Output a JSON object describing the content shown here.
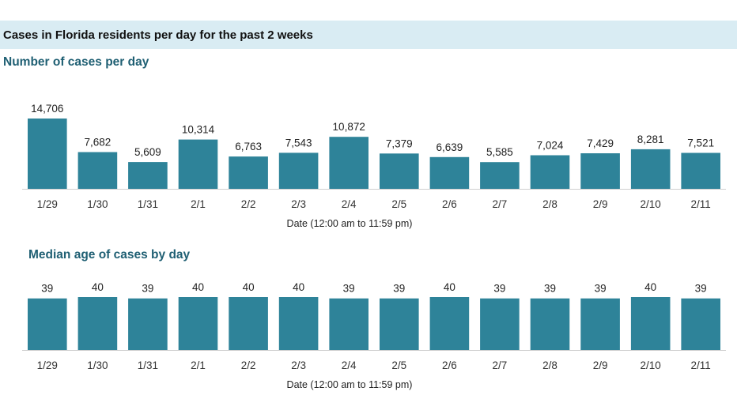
{
  "banner": {
    "title": "Cases in Florida residents per day for the past 2 weeks"
  },
  "colors": {
    "bar": "#2e8399",
    "banner_bg": "#d9ecf3",
    "chart_title": "#1f5f73"
  },
  "chart_data": [
    {
      "type": "bar",
      "title": "Number of cases per day",
      "xlabel": "Date (12:00 am to 11:59 pm)",
      "ylabel": "",
      "categories": [
        "1/29",
        "1/30",
        "1/31",
        "2/1",
        "2/2",
        "2/3",
        "2/4",
        "2/5",
        "2/6",
        "2/7",
        "2/8",
        "2/9",
        "2/10",
        "2/11"
      ],
      "values": [
        14706,
        7682,
        5609,
        10314,
        6763,
        7543,
        10872,
        7379,
        6639,
        5585,
        7024,
        7429,
        8281,
        7521
      ],
      "labels": [
        "14,706",
        "7,682",
        "5,609",
        "10,314",
        "6,763",
        "7,543",
        "10,872",
        "7,379",
        "6,639",
        "5,585",
        "7,024",
        "7,429",
        "8,281",
        "7,521"
      ],
      "ylim": [
        0,
        14706
      ],
      "grid": false,
      "legend": "none"
    },
    {
      "type": "bar",
      "title": "Median age of cases by day",
      "xlabel": "Date (12:00 am to 11:59 pm)",
      "ylabel": "",
      "categories": [
        "1/29",
        "1/30",
        "1/31",
        "2/1",
        "2/2",
        "2/3",
        "2/4",
        "2/5",
        "2/6",
        "2/7",
        "2/8",
        "2/9",
        "2/10",
        "2/11"
      ],
      "values": [
        39,
        40,
        39,
        40,
        40,
        40,
        39,
        39,
        40,
        39,
        39,
        39,
        40,
        39
      ],
      "labels": [
        "39",
        "40",
        "39",
        "40",
        "40",
        "40",
        "39",
        "39",
        "40",
        "39",
        "39",
        "39",
        "40",
        "39"
      ],
      "ylim": [
        0,
        40
      ],
      "grid": false,
      "legend": "none"
    }
  ]
}
